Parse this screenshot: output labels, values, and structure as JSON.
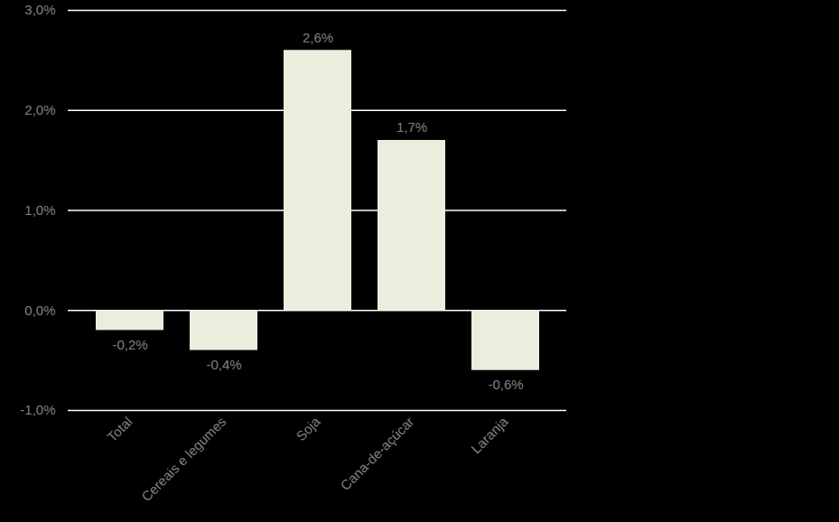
{
  "chart_data": {
    "type": "bar",
    "categories": [
      "Total",
      "Cereais e legumes",
      "Soja",
      "Cana-de-açúcar",
      "Laranja"
    ],
    "values": [
      -0.2,
      -0.4,
      2.6,
      1.7,
      -0.6
    ],
    "value_labels": [
      "-0,2%",
      "-0,4%",
      "2,6%",
      "1,7%",
      "-0,6%"
    ],
    "color": "#ebeedd",
    "ylim": [
      -1,
      3
    ],
    "yticks": [
      {
        "value": -1,
        "label": "-1,0%"
      },
      {
        "value": 0,
        "label": "0,0%"
      },
      {
        "value": 1,
        "label": "1,0%"
      },
      {
        "value": 2,
        "label": "2,0%"
      },
      {
        "value": 3,
        "label": "3,0%"
      }
    ],
    "grid": true,
    "data_labels": true
  }
}
